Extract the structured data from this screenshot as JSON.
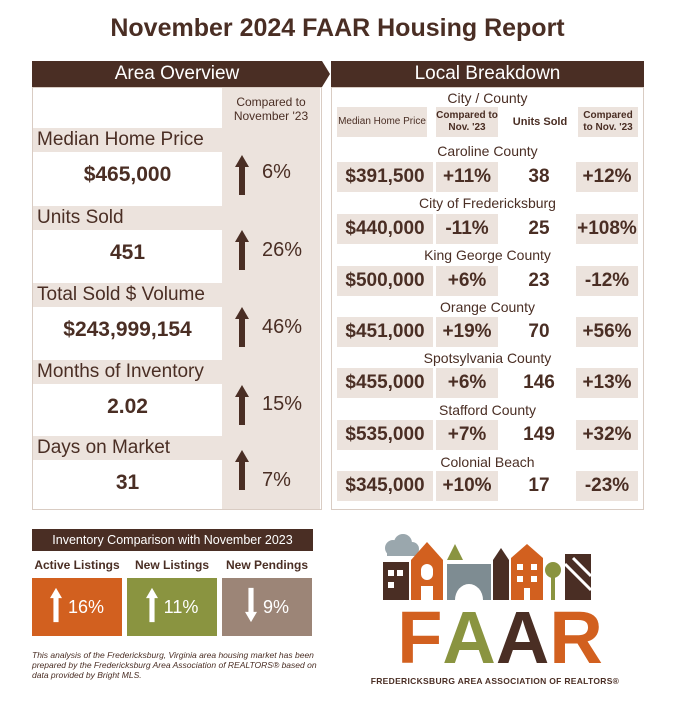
{
  "title": "November 2024 FAAR Housing Report",
  "area_overview": {
    "header": "Area Overview",
    "compare_label": "Compared to November '23",
    "metrics": [
      {
        "label": "Median Home Price",
        "value": "$465,000",
        "change": "6%",
        "direction": "up"
      },
      {
        "label": "Units Sold",
        "value": "451",
        "change": "26%",
        "direction": "up"
      },
      {
        "label": "Total Sold $ Volume",
        "value": "$243,999,154",
        "change": "46%",
        "direction": "up"
      },
      {
        "label": "Months of Inventory",
        "value": "2.02",
        "change": "15%",
        "direction": "up"
      },
      {
        "label": "Days on Market",
        "value": "31",
        "change": "7%",
        "direction": "up"
      }
    ]
  },
  "local_breakdown": {
    "header": "Local Breakdown",
    "city_label": "City / County",
    "columns": [
      "Median Home Price",
      "Compared to Nov. '23",
      "Units Sold",
      "Compared to Nov. '23"
    ],
    "rows": [
      {
        "name": "Caroline County",
        "price": "$391,500",
        "price_change": "+11%",
        "units": "38",
        "units_change": "+12%"
      },
      {
        "name": "City of Fredericksburg",
        "price": "$440,000",
        "price_change": "-11%",
        "units": "25",
        "units_change": "+108%"
      },
      {
        "name": "King George County",
        "price": "$500,000",
        "price_change": "+6%",
        "units": "23",
        "units_change": "-12%"
      },
      {
        "name": "Orange County",
        "price": "$451,000",
        "price_change": "+19%",
        "units": "70",
        "units_change": "+56%"
      },
      {
        "name": "Spotsylvania County",
        "price": "$455,000",
        "price_change": "+6%",
        "units": "146",
        "units_change": "+13%"
      },
      {
        "name": "Stafford County",
        "price": "$535,000",
        "price_change": "+7%",
        "units": "149",
        "units_change": "+32%"
      },
      {
        "name": "Colonial Beach",
        "price": "$345,000",
        "price_change": "+10%",
        "units": "17",
        "units_change": "-23%"
      }
    ]
  },
  "inventory": {
    "header": "Inventory Comparison with November 2023",
    "items": [
      {
        "label": "Active Listings",
        "change": "16%",
        "direction": "up",
        "color": "#d2601f"
      },
      {
        "label": "New Listings",
        "change": "11%",
        "direction": "up",
        "color": "#8a9440"
      },
      {
        "label": "New Pendings",
        "change": "9%",
        "direction": "down",
        "color": "#9c8577"
      }
    ]
  },
  "footnote": "This analysis of the Fredericksburg, Virginia area housing market has been prepared by the Fredericksburg Area Association of REALTORS® based on data provided by Bright MLS.",
  "logo": {
    "letters": [
      "F",
      "A",
      "A",
      "R"
    ],
    "letter_colors": [
      "#d2601f",
      "#8a9440",
      "#4a2e24",
      "#d2601f"
    ],
    "subtitle": "FREDERICKSBURG AREA ASSOCIATION OF REALTORS®"
  },
  "colors": {
    "brown": "#4a2e24",
    "tan": "#ece3dd",
    "orange": "#d2601f",
    "green": "#8a9440",
    "taupe": "#9c8577"
  }
}
